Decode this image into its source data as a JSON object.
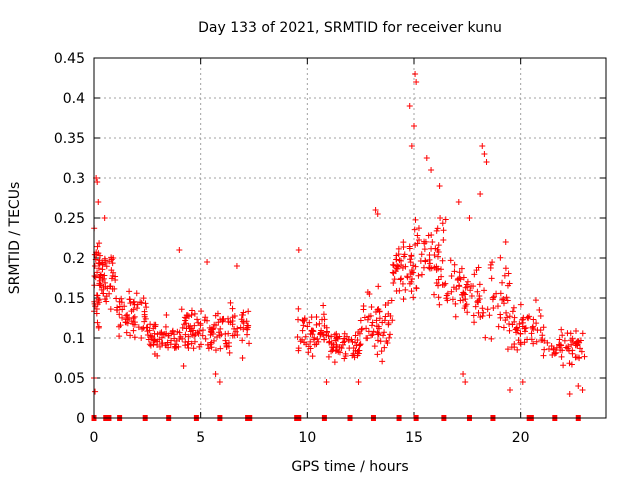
{
  "chart_data": {
    "type": "scatter",
    "title": "Day 133 of 2021, SRMTID for receiver kunu",
    "xlabel": "GPS time / hours",
    "ylabel": "SRMTID / TECUs",
    "xlim": [
      0,
      24
    ],
    "ylim": [
      0,
      0.45
    ],
    "x_ticks": [
      0,
      5,
      10,
      15,
      20
    ],
    "x_tick_labels": [
      "0",
      "5",
      "10",
      "15",
      "20"
    ],
    "y_ticks": [
      0,
      0.05,
      0.1,
      0.15,
      0.2,
      0.25,
      0.3,
      0.35,
      0.4,
      0.45
    ],
    "y_tick_labels": [
      "0",
      "0.05",
      "0.1",
      "0.15",
      "0.2",
      "0.25",
      "0.3",
      "0.35",
      "0.4",
      "0.45"
    ],
    "grid": true,
    "marker": "+",
    "marker_color": "#ff0000",
    "series": [
      {
        "name": "SRMTID",
        "note": "approximate cluster envelope read from the plot: [start_h, end_h, mean, spread, count]",
        "clusters": [
          [
            0.0,
            0.3,
            0.16,
            0.09,
            40
          ],
          [
            0.3,
            1.0,
            0.17,
            0.05,
            40
          ],
          [
            1.0,
            2.5,
            0.13,
            0.04,
            60
          ],
          [
            2.5,
            4.0,
            0.1,
            0.03,
            60
          ],
          [
            4.0,
            5.5,
            0.11,
            0.04,
            60
          ],
          [
            5.5,
            7.3,
            0.11,
            0.04,
            70
          ],
          [
            9.5,
            11.0,
            0.11,
            0.04,
            60
          ],
          [
            11.0,
            12.5,
            0.09,
            0.03,
            60
          ],
          [
            12.5,
            14.0,
            0.12,
            0.05,
            60
          ],
          [
            14.0,
            15.0,
            0.19,
            0.06,
            50
          ],
          [
            15.0,
            16.5,
            0.2,
            0.07,
            60
          ],
          [
            16.5,
            18.0,
            0.16,
            0.06,
            50
          ],
          [
            18.0,
            19.5,
            0.15,
            0.06,
            50
          ],
          [
            19.5,
            21.0,
            0.11,
            0.04,
            50
          ],
          [
            21.0,
            23.0,
            0.09,
            0.03,
            60
          ]
        ],
        "peaks": [
          [
            0.1,
            0.3
          ],
          [
            0.15,
            0.295
          ],
          [
            0.2,
            0.27
          ],
          [
            0.5,
            0.25
          ],
          [
            0.9,
            0.2
          ],
          [
            4.0,
            0.21
          ],
          [
            5.3,
            0.195
          ],
          [
            6.7,
            0.19
          ],
          [
            9.6,
            0.21
          ],
          [
            13.2,
            0.26
          ],
          [
            13.3,
            0.255
          ],
          [
            14.8,
            0.39
          ],
          [
            15.0,
            0.365
          ],
          [
            15.05,
            0.43
          ],
          [
            15.1,
            0.42
          ],
          [
            14.9,
            0.34
          ],
          [
            15.6,
            0.325
          ],
          [
            15.8,
            0.31
          ],
          [
            16.2,
            0.29
          ],
          [
            17.1,
            0.27
          ],
          [
            17.6,
            0.25
          ],
          [
            18.2,
            0.34
          ],
          [
            18.3,
            0.33
          ],
          [
            18.4,
            0.32
          ],
          [
            18.1,
            0.28
          ],
          [
            19.3,
            0.22
          ]
        ],
        "dips": [
          [
            0.0,
            0.05
          ],
          [
            0.05,
            0.033
          ],
          [
            4.2,
            0.065
          ],
          [
            5.7,
            0.055
          ],
          [
            5.9,
            0.045
          ],
          [
            10.9,
            0.045
          ],
          [
            12.4,
            0.045
          ],
          [
            17.3,
            0.055
          ],
          [
            17.4,
            0.045
          ],
          [
            19.5,
            0.035
          ],
          [
            20.1,
            0.045
          ],
          [
            22.3,
            0.03
          ],
          [
            22.7,
            0.04
          ],
          [
            22.9,
            0.035
          ]
        ],
        "zero_markers": [
          0.0,
          0.55,
          0.7,
          1.2,
          2.4,
          3.5,
          4.8,
          5.9,
          7.2,
          7.3,
          9.5,
          9.6,
          10.8,
          12.0,
          13.1,
          14.3,
          15.1,
          16.4,
          17.6,
          18.7,
          20.4,
          20.5,
          21.6,
          22.7
        ]
      }
    ]
  }
}
